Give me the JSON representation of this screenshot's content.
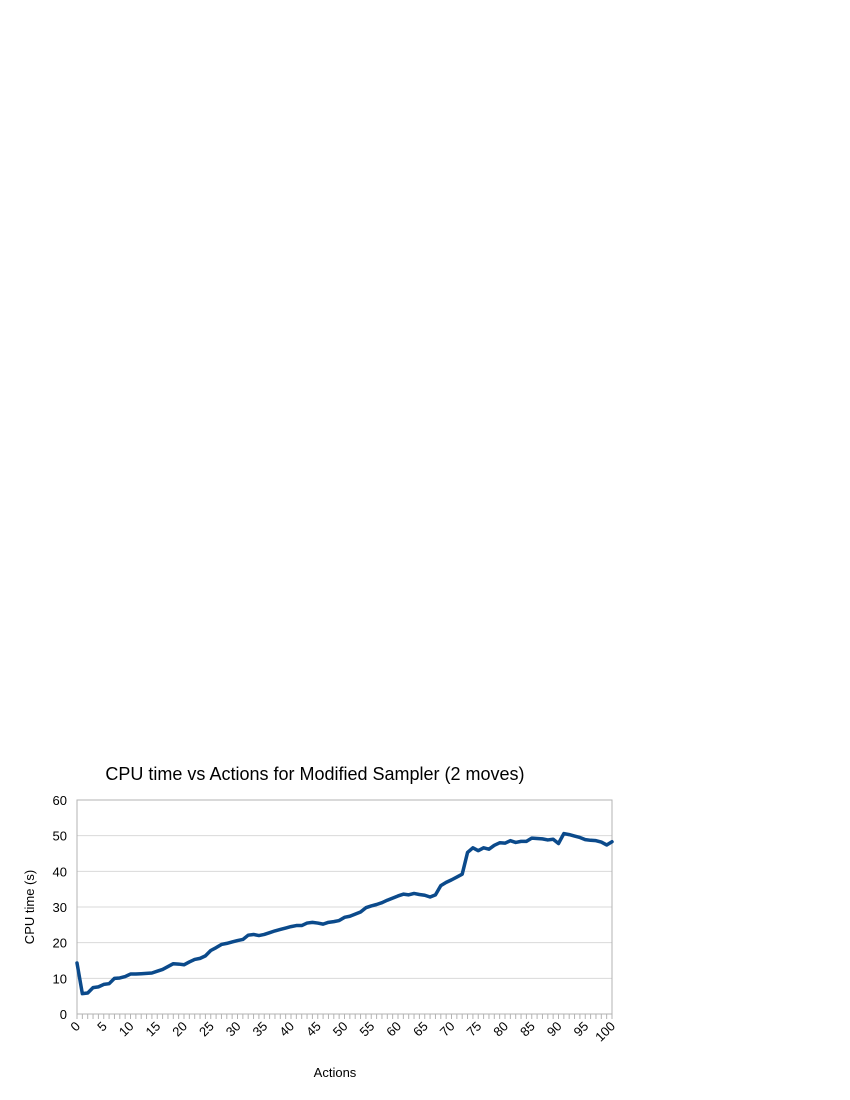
{
  "chart_data": {
    "type": "line",
    "title": "CPU time vs Actions for Modified Sampler (2 moves)",
    "xlabel": "Actions",
    "ylabel": "CPU time (s)",
    "xlim": [
      0,
      100
    ],
    "ylim": [
      0,
      60
    ],
    "x_ticks": [
      0,
      5,
      10,
      15,
      20,
      25,
      30,
      35,
      40,
      45,
      50,
      55,
      60,
      65,
      70,
      75,
      80,
      85,
      90,
      95,
      100
    ],
    "y_ticks": [
      0,
      10,
      20,
      30,
      40,
      50,
      60
    ],
    "grid": true,
    "legend": "none",
    "series": [
      {
        "color": "#0b4a8b",
        "x": [
          0,
          1,
          2,
          3,
          4,
          5,
          6,
          7,
          8,
          9,
          10,
          11,
          12,
          13,
          14,
          15,
          16,
          17,
          18,
          19,
          20,
          21,
          22,
          23,
          24,
          25,
          26,
          27,
          28,
          29,
          30,
          31,
          32,
          33,
          34,
          35,
          36,
          37,
          38,
          39,
          40,
          41,
          42,
          43,
          44,
          45,
          46,
          47,
          48,
          49,
          50,
          51,
          52,
          53,
          54,
          55,
          56,
          57,
          58,
          59,
          60,
          61,
          62,
          63,
          64,
          65,
          66,
          67,
          68,
          69,
          70,
          71,
          72,
          73,
          74,
          75,
          76,
          77,
          78,
          79,
          80,
          81,
          82,
          83,
          84,
          85,
          86,
          87,
          88,
          89,
          90,
          91,
          92,
          93,
          94,
          95,
          96,
          97,
          98,
          99,
          100
        ],
        "values": [
          14.3,
          5.7,
          5.9,
          7.4,
          7.6,
          8.3,
          8.5,
          10.0,
          10.1,
          10.5,
          11.2,
          11.2,
          11.3,
          11.4,
          11.5,
          12.0,
          12.5,
          13.3,
          14.1,
          14.0,
          13.8,
          14.6,
          15.3,
          15.6,
          16.3,
          17.8,
          18.6,
          19.5,
          19.8,
          20.2,
          20.6,
          20.9,
          22.1,
          22.3,
          22.0,
          22.3,
          22.8,
          23.3,
          23.7,
          24.1,
          24.5,
          24.8,
          24.8,
          25.5,
          25.7,
          25.5,
          25.2,
          25.7,
          25.9,
          26.2,
          27.1,
          27.4,
          28.0,
          28.6,
          29.8,
          30.3,
          30.7,
          31.2,
          31.9,
          32.5,
          33.1,
          33.6,
          33.4,
          33.8,
          33.5,
          33.3,
          32.8,
          33.4,
          36.0,
          36.9,
          37.6,
          38.4,
          39.2,
          45.3,
          46.6,
          45.8,
          46.6,
          46.2,
          47.3,
          48.0,
          47.9,
          48.6,
          48.1,
          48.4,
          48.4,
          49.3,
          49.2,
          49.1,
          48.8,
          49.0,
          47.8,
          50.6,
          50.3,
          49.9,
          49.5,
          48.9,
          48.7,
          48.6,
          48.2,
          47.4,
          48.3
        ]
      }
    ]
  }
}
